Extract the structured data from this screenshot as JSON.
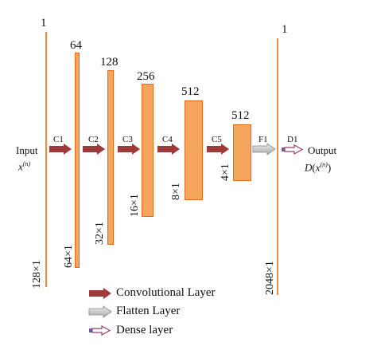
{
  "input": {
    "label": "Input",
    "symbol": "x",
    "superscript": "(n)",
    "size_top": "1",
    "size_side": "128×1"
  },
  "output": {
    "label": "Output",
    "fn": "D",
    "symbol": "x",
    "superscript": "(n)",
    "size_top": "1",
    "size_side": "2048×1"
  },
  "blocks": [
    {
      "channels": "64",
      "size": "64×1"
    },
    {
      "channels": "128",
      "size": "32×1"
    },
    {
      "channels": "256",
      "size": "16×1"
    },
    {
      "channels": "512",
      "size": "8×1"
    },
    {
      "channels": "512",
      "size": "4×1"
    }
  ],
  "ops": [
    "C1",
    "C2",
    "C3",
    "C4",
    "C5",
    "F1",
    "D1"
  ],
  "legend": [
    {
      "label": "Convolutional Layer",
      "type": "conv"
    },
    {
      "label": "Flatten Layer",
      "type": "flatten"
    },
    {
      "label": "Dense layer",
      "type": "dense"
    }
  ],
  "colors": {
    "block_fill": "#f6a55d",
    "block_border": "#e86a1c",
    "conv_arrow": "#a0393a",
    "flatten_arrow": "#c8c8c8",
    "dense_arrow": "#9b3c6a"
  }
}
